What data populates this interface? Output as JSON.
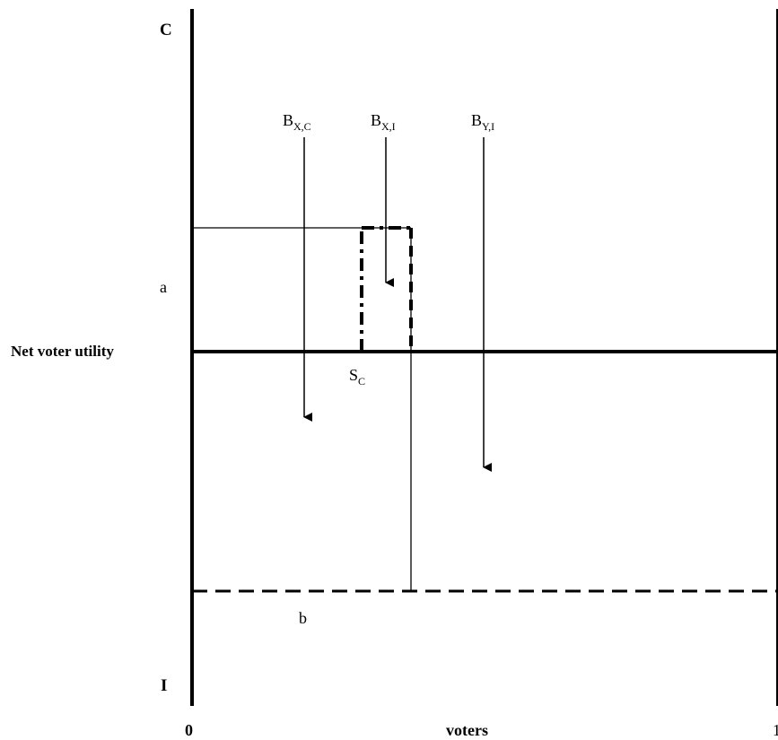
{
  "labels": {
    "top_axis": "C",
    "bottom_axis": "I",
    "origin": "0",
    "right_end": "1",
    "x_axis": "voters",
    "y_axis": "Net voter utility",
    "a": "a",
    "b": "b",
    "sc_main": "S",
    "sc_sub": "C",
    "bxc_main": "B",
    "bxc_sub": "X,C",
    "bxi_main": "B",
    "bxi_sub": "X,I",
    "byi_main": "B",
    "byi_sub": "Y,I"
  }
}
